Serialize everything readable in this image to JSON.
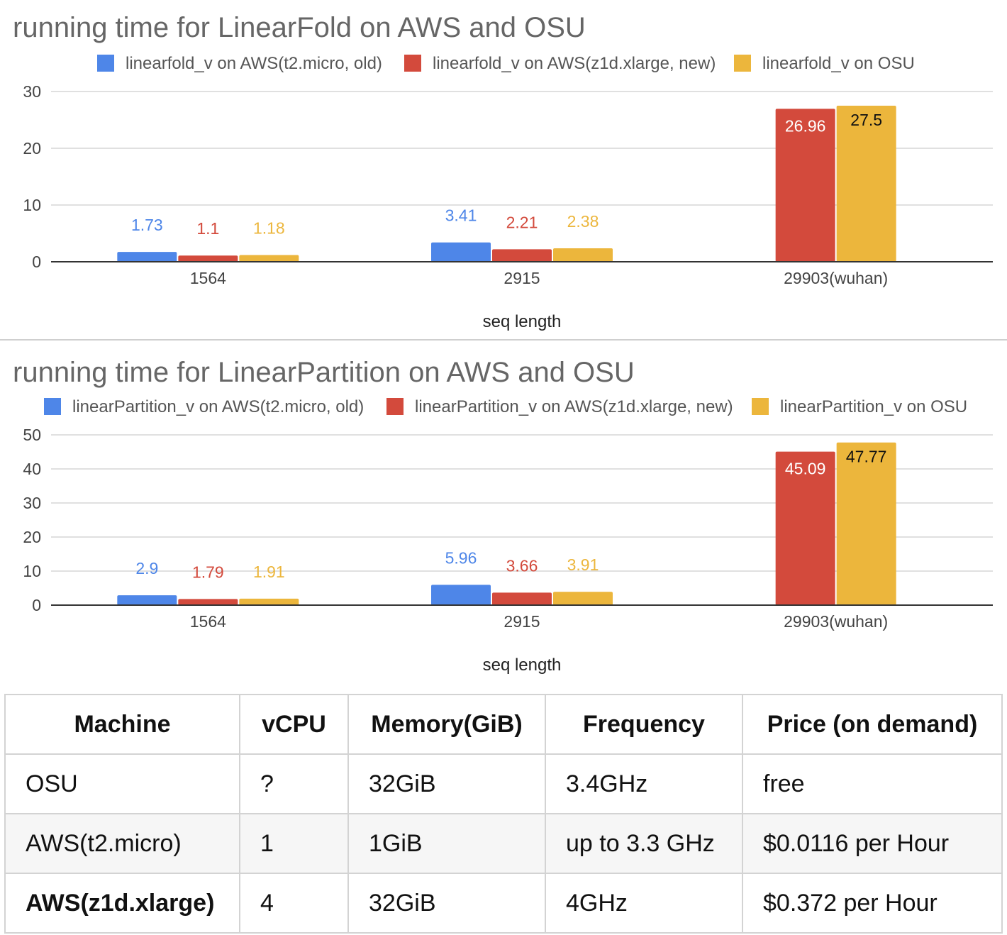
{
  "chart_data": [
    {
      "type": "bar",
      "title": "running time for LinearFold on AWS and OSU",
      "xlabel": "seq length",
      "ylabel": "",
      "categories": [
        "1564",
        "2915",
        "29903(wuhan)"
      ],
      "series": [
        {
          "name": "linearfold_v on AWS(t2.micro, old)",
          "color": "#4e86e8",
          "values": [
            1.73,
            3.41,
            null
          ]
        },
        {
          "name": "linearfold_v on AWS(z1d.xlarge, new)",
          "color": "#d34a3c",
          "values": [
            1.1,
            2.21,
            26.96
          ]
        },
        {
          "name": "linearfold_v on OSU",
          "color": "#ecb63c",
          "values": [
            1.18,
            2.38,
            27.5
          ]
        }
      ],
      "ylim": [
        0,
        30
      ],
      "yticks": [
        0,
        10,
        20,
        30
      ],
      "grid": true,
      "legend": "top"
    },
    {
      "type": "bar",
      "title": "running time for LinearPartition on AWS and OSU",
      "xlabel": "seq length",
      "ylabel": "",
      "categories": [
        "1564",
        "2915",
        "29903(wuhan)"
      ],
      "series": [
        {
          "name": "linearPartition_v on AWS(t2.micro, old)",
          "color": "#4e86e8",
          "values": [
            2.9,
            5.96,
            null
          ]
        },
        {
          "name": "linearPartition_v on AWS(z1d.xlarge, new)",
          "color": "#d34a3c",
          "values": [
            1.79,
            3.66,
            45.09
          ]
        },
        {
          "name": "linearPartition_v on OSU",
          "color": "#ecb63c",
          "values": [
            1.91,
            3.91,
            47.77
          ]
        }
      ],
      "ylim": [
        0,
        50
      ],
      "yticks": [
        0,
        10,
        20,
        30,
        40,
        50
      ],
      "grid": true,
      "legend": "top"
    }
  ],
  "table": {
    "headers": [
      "Machine",
      "vCPU",
      "Memory(GiB)",
      "Frequency",
      "Price (on demand)"
    ],
    "rows": [
      [
        "OSU",
        "?",
        "32GiB",
        "3.4GHz",
        "free"
      ],
      [
        "AWS(t2.micro)",
        "1",
        "1GiB",
        "up to 3.3 GHz",
        "$0.0116 per Hour"
      ],
      [
        "AWS(z1d.xlarge)",
        "4",
        "32GiB",
        "4GHz",
        "$0.372 per Hour"
      ]
    ]
  }
}
